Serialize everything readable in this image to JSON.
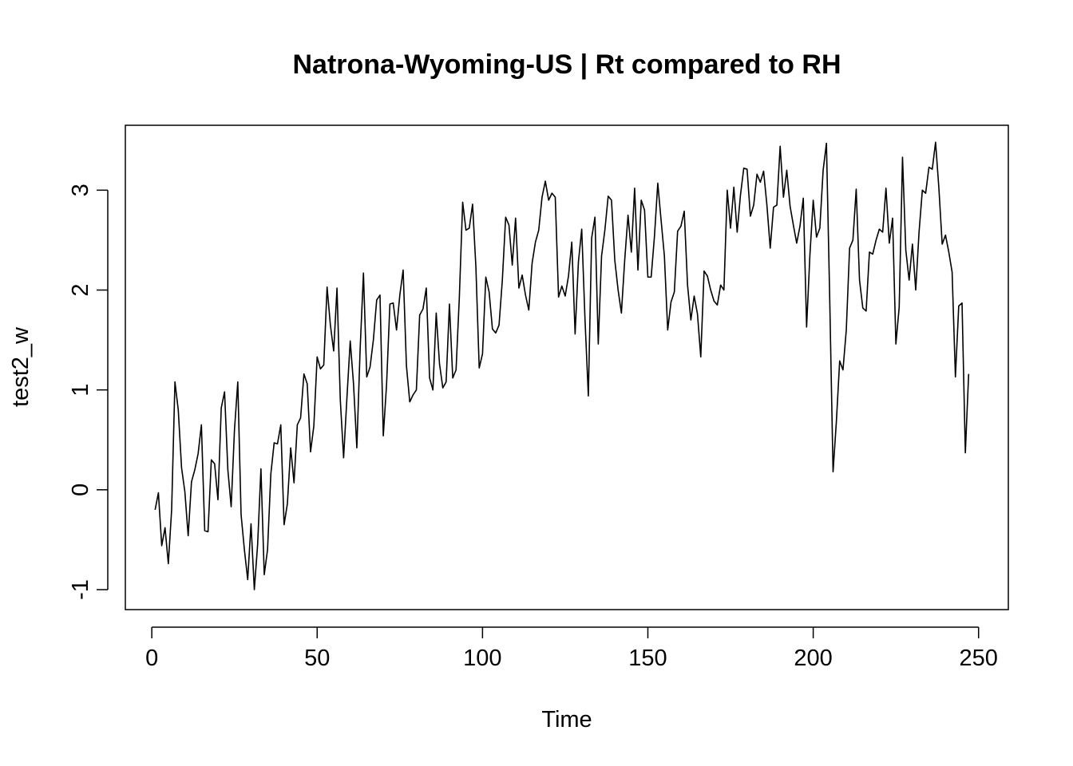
{
  "chart_data": {
    "type": "line",
    "title": "Natrona-Wyoming-US | Rt compared to RH",
    "xlabel": "Time",
    "ylabel": "test2_w",
    "xlim": [
      -8,
      259
    ],
    "ylim": [
      -1.2,
      3.65
    ],
    "x_ticks": [
      0,
      50,
      100,
      150,
      200,
      250
    ],
    "y_ticks": [
      -1,
      0,
      1,
      2,
      3
    ],
    "x_tick_labels": [
      "0",
      "50",
      "100",
      "150",
      "200",
      "250"
    ],
    "y_tick_labels": [
      "-1",
      "0",
      "1",
      "2",
      "3"
    ],
    "grid": false,
    "legend": "none",
    "series": [
      {
        "x_start": 1,
        "x_step": 1,
        "values": [
          -0.2,
          -0.03,
          -0.56,
          -0.38,
          -0.74,
          -0.2,
          1.08,
          0.8,
          0.22,
          -0.02,
          -0.46,
          0.08,
          0.2,
          0.36,
          0.65,
          -0.41,
          -0.42,
          0.3,
          0.26,
          -0.1,
          0.82,
          0.98,
          0.2,
          -0.17,
          0.6,
          1.08,
          -0.25,
          -0.6,
          -0.9,
          -0.34,
          -1.0,
          -0.55,
          0.21,
          -0.85,
          -0.6,
          0.16,
          0.47,
          0.46,
          0.65,
          -0.35,
          -0.14,
          0.42,
          0.07,
          0.65,
          0.72,
          1.16,
          1.06,
          0.38,
          0.64,
          1.33,
          1.21,
          1.25,
          2.03,
          1.65,
          1.39,
          2.02,
          0.9,
          0.32,
          0.92,
          1.49,
          1.06,
          0.42,
          1.41,
          2.17,
          1.13,
          1.23,
          1.5,
          1.9,
          1.95,
          0.54,
          1.06,
          1.86,
          1.87,
          1.6,
          1.95,
          2.2,
          1.24,
          0.88,
          0.95,
          1.0,
          1.75,
          1.81,
          2.02,
          1.12,
          1.0,
          1.77,
          1.26,
          1.02,
          1.08,
          1.86,
          1.12,
          1.2,
          1.93,
          2.88,
          2.6,
          2.62,
          2.86,
          2.23,
          1.22,
          1.36,
          2.13,
          1.98,
          1.61,
          1.57,
          1.65,
          2.1,
          2.73,
          2.65,
          2.25,
          2.72,
          2.02,
          2.15,
          1.95,
          1.8,
          2.27,
          2.48,
          2.6,
          2.93,
          3.09,
          2.9,
          2.97,
          2.93,
          1.93,
          2.04,
          1.94,
          2.14,
          2.48,
          1.56,
          2.28,
          2.61,
          1.7,
          0.94,
          2.52,
          2.73,
          1.46,
          2.34,
          2.6,
          2.94,
          2.9,
          2.3,
          2.0,
          1.77,
          2.3,
          2.75,
          2.38,
          3.02,
          2.2,
          2.9,
          2.8,
          2.13,
          2.13,
          2.54,
          3.07,
          2.7,
          2.34,
          1.6,
          1.88,
          1.98,
          2.59,
          2.64,
          2.79,
          2.05,
          1.7,
          1.94,
          1.76,
          1.33,
          2.19,
          2.14,
          2.0,
          1.89,
          1.85,
          2.05,
          2.0,
          3.0,
          2.62,
          3.03,
          2.58,
          2.95,
          3.22,
          3.21,
          2.74,
          2.85,
          3.16,
          3.08,
          3.19,
          2.85,
          2.42,
          2.83,
          2.85,
          3.44,
          2.93,
          3.2,
          2.84,
          2.65,
          2.47,
          2.64,
          2.92,
          1.63,
          2.35,
          2.9,
          2.53,
          2.62,
          3.2,
          3.47,
          1.9,
          0.18,
          0.68,
          1.29,
          1.2,
          1.6,
          2.42,
          2.5,
          3.01,
          2.1,
          1.82,
          1.79,
          2.38,
          2.36,
          2.5,
          2.61,
          2.58,
          3.02,
          2.47,
          2.72,
          1.46,
          1.83,
          3.33,
          2.4,
          2.1,
          2.46,
          2.0,
          2.58,
          3.0,
          2.97,
          3.23,
          3.21,
          3.48,
          3.02,
          2.46,
          2.55,
          2.38,
          2.18,
          1.13,
          1.84,
          1.87,
          0.37,
          1.16
        ]
      }
    ]
  }
}
